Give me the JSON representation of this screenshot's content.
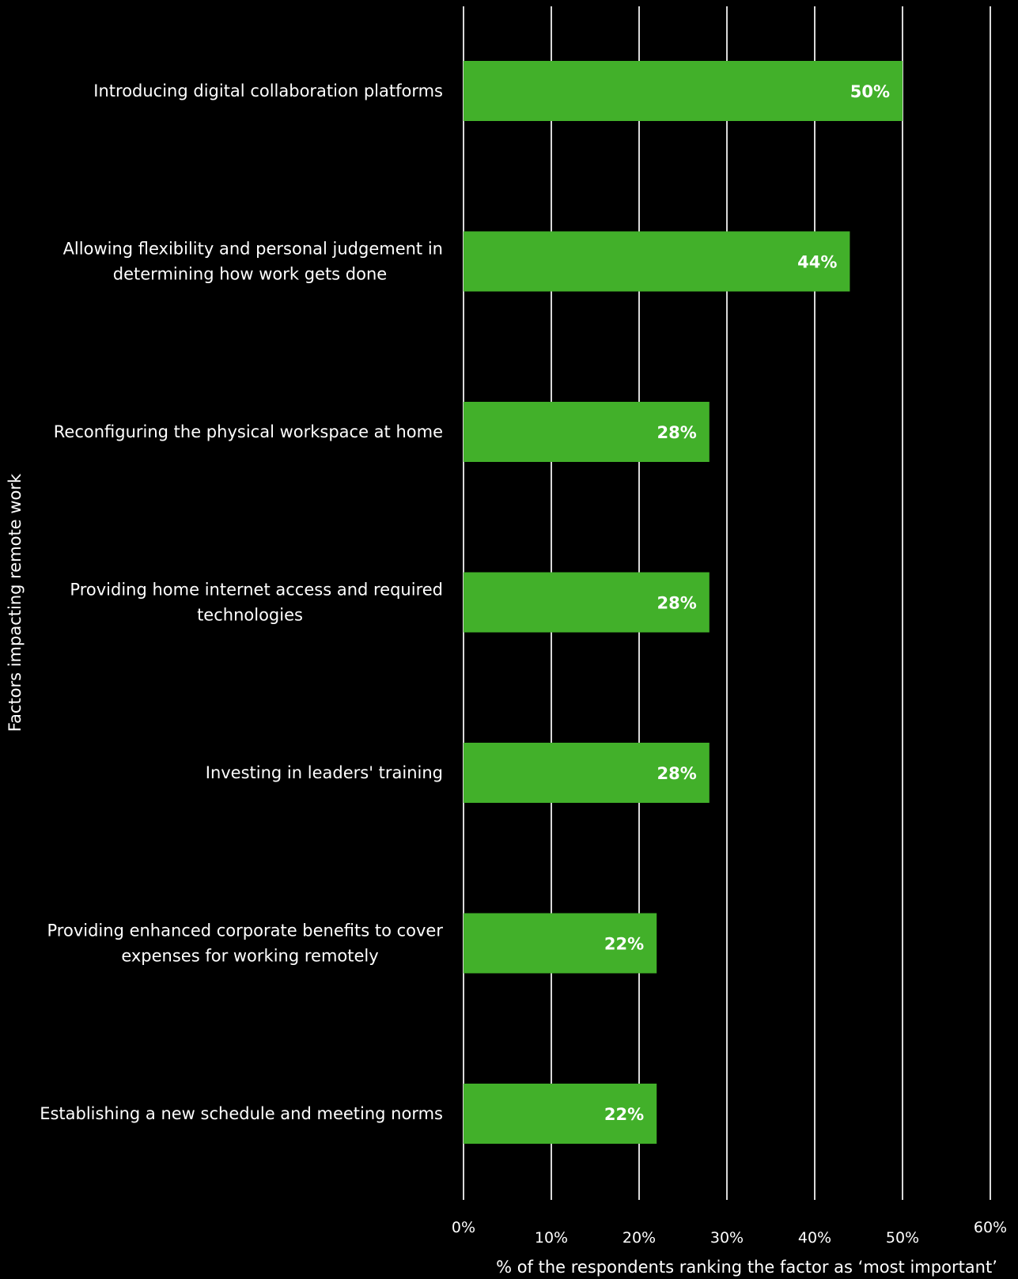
{
  "chart_data": {
    "type": "bar",
    "orientation": "horizontal",
    "categories": [
      "Introducing digital collaboration platforms",
      "Allowing flexibility and personal judgement in determining how work gets done",
      "Reconfiguring the physical workspace at home",
      "Providing home internet access and required technologies",
      "Investing in leaders' training",
      "Providing enhanced corporate benefits to cover expenses for working remotely",
      "Establishing a new schedule and meeting norms"
    ],
    "category_lines": [
      [
        "Introducing digital collaboration platforms"
      ],
      [
        "Allowing flexibility and personal judgement in",
        "determining how work gets done"
      ],
      [
        "Reconfiguring the physical workspace at home"
      ],
      [
        "Providing home internet access and required",
        "technologies"
      ],
      [
        "Investing in leaders' training"
      ],
      [
        "Providing enhanced corporate benefits to cover",
        "expenses for working remotely"
      ],
      [
        "Establishing a new schedule and meeting norms"
      ]
    ],
    "values": [
      50,
      44,
      28,
      28,
      28,
      22,
      22
    ],
    "value_labels": [
      "50%",
      "44%",
      "28%",
      "28%",
      "28%",
      "22%",
      "22%"
    ],
    "xlim": [
      0,
      60
    ],
    "xticks": [
      0,
      10,
      20,
      30,
      40,
      50,
      60
    ],
    "xtick_labels": [
      "0%",
      "10%",
      "20%",
      "30%",
      "40%",
      "50%",
      "60%"
    ],
    "xlabel": "% of the respondents ranking the factor as ‘most important’",
    "ylabel": "Factors impacting remote work",
    "grid": true,
    "colors": {
      "bar": "#42b02a",
      "background": "#000000",
      "grid": "#d9d9d9",
      "text": "#ffffff"
    }
  }
}
